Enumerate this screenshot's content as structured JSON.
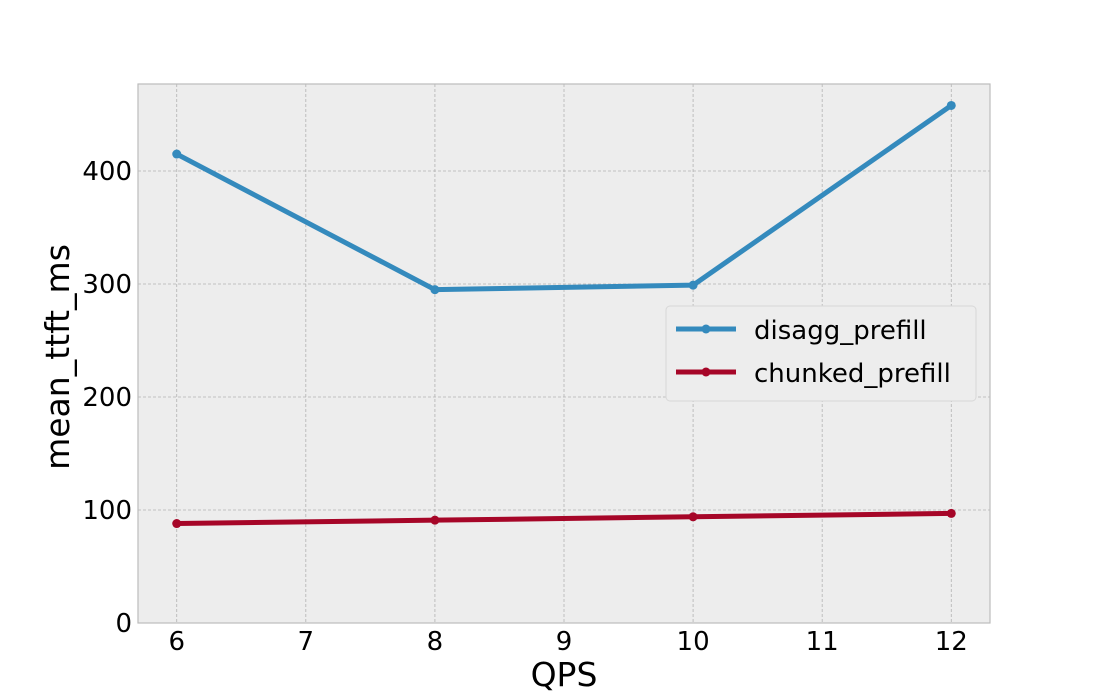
{
  "chart_data": {
    "type": "line",
    "title": "",
    "xlabel": "QPS",
    "ylabel": "mean_ttft_ms",
    "x": [
      6,
      8,
      10,
      12
    ],
    "xlim": [
      5.7,
      12.3
    ],
    "ylim": [
      0,
      477
    ],
    "xticks": [
      6,
      7,
      8,
      9,
      10,
      11,
      12
    ],
    "yticks": [
      0,
      100,
      200,
      300,
      400
    ],
    "grid": true,
    "legend_position": "center-right",
    "series": [
      {
        "name": "disagg_prefill",
        "color": "#348ABD",
        "values": [
          415,
          295,
          299,
          458
        ]
      },
      {
        "name": "chunked_prefill",
        "color": "#A60628",
        "values": [
          88,
          91,
          94,
          97
        ]
      }
    ]
  },
  "style": {
    "plot_background": "#EDEDED",
    "grid_color": "#B2B2B2",
    "frame_color": "#BCBCBC"
  }
}
